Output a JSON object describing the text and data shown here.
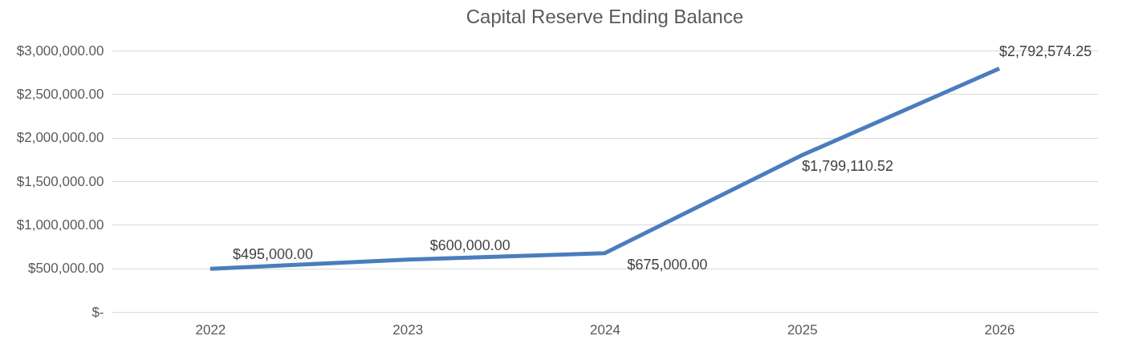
{
  "chart_data": {
    "type": "line",
    "title": "Capital Reserve Ending Balance",
    "categories": [
      "2022",
      "2023",
      "2024",
      "2025",
      "2026"
    ],
    "series": [
      {
        "color": "#4a7dbd",
        "values": [
          495000,
          600000,
          675000,
          1799110.52,
          2792574.25
        ],
        "value_labels": [
          "$495,000.00",
          "$600,000.00",
          "$675,000.00",
          "$1,799,110.52",
          "$2,792,574.25"
        ]
      }
    ],
    "ylim": [
      0,
      3000000
    ],
    "yticks": [
      {
        "value": 0,
        "label": "$-"
      },
      {
        "value": 500000,
        "label": "$500,000.00"
      },
      {
        "value": 1000000,
        "label": "$1,000,000.00"
      },
      {
        "value": 1500000,
        "label": "$1,500,000.00"
      },
      {
        "value": 2000000,
        "label": "$2,000,000.00"
      },
      {
        "value": 2500000,
        "label": "$2,500,000.00"
      },
      {
        "value": 3000000,
        "label": "$3,000,000.00"
      }
    ],
    "grid": "y",
    "marker": "none",
    "line_style": "solid"
  }
}
